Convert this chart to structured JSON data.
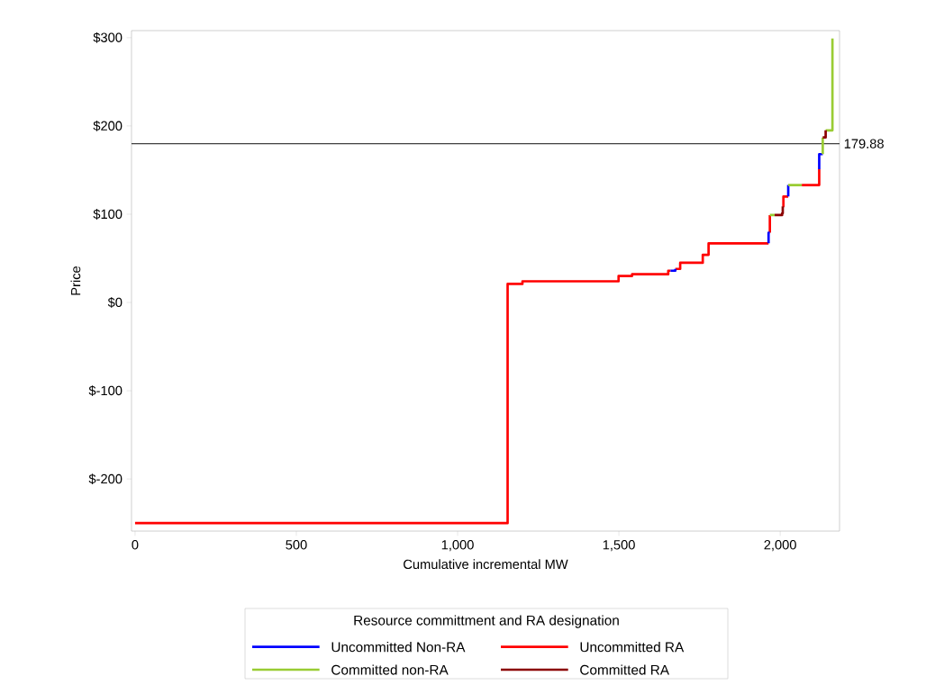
{
  "chart_data": {
    "type": "line",
    "xlabel": "Cumulative incremental MW",
    "ylabel": "Price",
    "legend_title": "Resource committment and RA designation",
    "legend": "bottom",
    "marker": "none",
    "line_style": "solid",
    "grid": false,
    "xlim": [
      -11,
      2184
    ],
    "ylim": [
      -259,
      308
    ],
    "xticks": [
      0,
      500,
      {
        "value": 1000,
        "label": "1,000"
      },
      {
        "value": 1500,
        "label": "1,500"
      },
      {
        "value": 2000,
        "label": "2,000"
      }
    ],
    "yticks": [
      {
        "value": -200,
        "label": "$-200"
      },
      {
        "value": -100,
        "label": "$-100"
      },
      {
        "value": 0,
        "label": "$0"
      },
      {
        "value": 100,
        "label": "$100"
      },
      {
        "value": 200,
        "label": "$200"
      },
      {
        "value": 300,
        "label": "$300"
      }
    ],
    "ref_lines": [
      {
        "axis": "y",
        "value": 179.88,
        "label": "179.88",
        "color": "#404040"
      }
    ],
    "series": [
      {
        "name": "Uncommitted Non-RA",
        "color": "#0000ff",
        "x": [
          1660,
          1675,
          1675,
          null,
          1964,
          1964,
          1968,
          null,
          2025,
          2025,
          null,
          2121,
          2121,
          2132
        ],
        "values": [
          36,
          36,
          38,
          null,
          67,
          79,
          79,
          null,
          120,
          133,
          null,
          151,
          168,
          168
        ]
      },
      {
        "name": "Uncommitted RA",
        "color": "#ff0000",
        "x": [
          0,
          1155,
          1155,
          1201,
          1201,
          1499,
          1499,
          1541,
          1541,
          1653,
          1653,
          1660,
          null,
          1675,
          1690,
          1690,
          1760,
          1760,
          1778,
          1778,
          1964,
          null,
          1968,
          1968,
          null,
          2008,
          2010,
          2010,
          2025,
          null,
          2067,
          2121,
          2121
        ],
        "values": [
          -250,
          -250,
          21,
          21,
          24,
          24,
          30,
          30,
          32,
          32,
          36,
          36,
          null,
          38,
          38,
          45,
          45,
          54,
          54,
          67,
          67,
          null,
          79,
          99,
          null,
          109,
          109,
          120,
          120,
          null,
          133,
          133,
          151
        ]
      },
      {
        "name": "Committed non-RA",
        "color": "#99cc33",
        "x": [
          1968,
          1983,
          null,
          2025,
          2067,
          null,
          2132,
          2132,
          null,
          2141,
          2162,
          2162
        ],
        "values": [
          99,
          99,
          null,
          133,
          133,
          null,
          168,
          187,
          null,
          195,
          195,
          299
        ]
      },
      {
        "name": "Committed RA",
        "color": "#8b0000",
        "x": [
          1983,
          2006,
          2006,
          2008,
          2008,
          null,
          2132,
          2141,
          2141
        ],
        "values": [
          99,
          99,
          101,
          101,
          109,
          null,
          187,
          187,
          195
        ]
      }
    ]
  }
}
